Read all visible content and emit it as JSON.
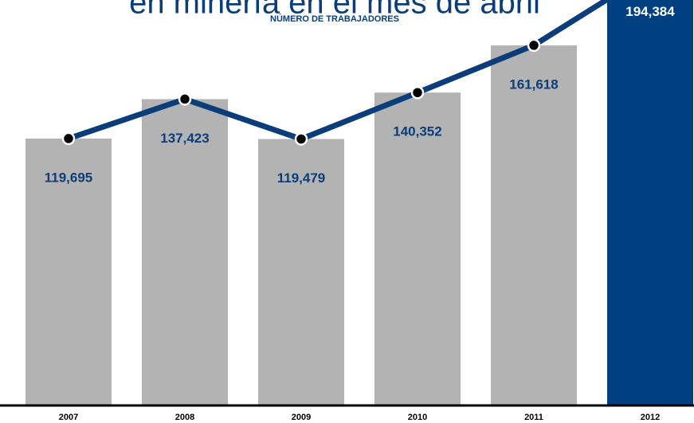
{
  "chart_data": {
    "type": "bar",
    "title": "en minería en el mes de abril",
    "subtitle": "NÚMERO DE TRABAJADORES",
    "categories": [
      "2007",
      "2008",
      "2009",
      "2010",
      "2011",
      "2012"
    ],
    "values": [
      119695,
      137423,
      119479,
      140352,
      161618,
      194384
    ],
    "value_labels": [
      "119,695",
      "137,423",
      "119,479",
      "140,352",
      "161,618",
      "194,384"
    ],
    "colors": [
      "#b3b3b3",
      "#b3b3b3",
      "#b3b3b3",
      "#b3b3b3",
      "#b3b3b3",
      "#003f80"
    ],
    "line_color": "#0a3d7a",
    "label_colors": [
      "#0a3d7a",
      "#0a3d7a",
      "#0a3d7a",
      "#0a3d7a",
      "#0a3d7a",
      "#ffffff"
    ],
    "ylim": [
      0,
      182000
    ]
  }
}
